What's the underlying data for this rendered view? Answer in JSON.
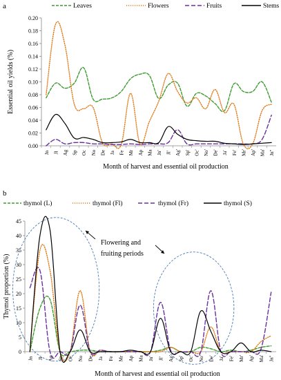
{
  "chart_data": [
    {
      "type": "line",
      "panel_label": "a",
      "ylabel": "Essential oil yields (%)",
      "xlabel": "Month of harvest and essential oil production",
      "ylim": [
        0,
        0.2
      ],
      "yticks": [
        "0.00",
        "0.02",
        "0.04",
        "0.06",
        "0.08",
        "0.10",
        "0.12",
        "0.14",
        "0.16",
        "0.18",
        "0.20"
      ],
      "ytick_values": [
        0,
        0.02,
        0.04,
        0.06,
        0.08,
        0.1,
        0.12,
        0.14,
        0.16,
        0.18,
        0.2
      ],
      "categories": [
        "Jn",
        "Jl",
        "Ag",
        "Sp",
        "Oc",
        "No",
        "De",
        "Ja",
        "Fe",
        "Mr",
        "Ap",
        "Ma",
        "Jn'",
        "Jl'",
        "Ag'",
        "Sp'",
        "Oc'",
        "No'",
        "De'",
        "Ja'",
        "Fe'",
        "Mr'",
        "Ap'",
        "Ma'",
        "Jn\""
      ],
      "legend_position": "top",
      "series": [
        {
          "name": "Leaves",
          "color": "#3b9b2f",
          "dash": "4,2",
          "values": [
            0.075,
            0.098,
            0.09,
            0.098,
            0.122,
            0.073,
            0.073,
            0.075,
            0.085,
            0.105,
            0.112,
            0.11,
            0.074,
            0.095,
            0.098,
            0.062,
            0.082,
            0.078,
            0.066,
            0.055,
            0.097,
            0.085,
            0.085,
            0.1,
            0.068
          ]
        },
        {
          "name": "Flowers",
          "color": "#e07b18",
          "dash": "1.2,1.8",
          "values": [
            0.08,
            0.19,
            0.158,
            0.065,
            0.058,
            0.06,
            0.005,
            0.003,
            0.002,
            0.082,
            0.003,
            0.038,
            0.07,
            0.113,
            0.085,
            0.067,
            0.075,
            0.058,
            0.088,
            0.052,
            0.065,
            0.003,
            0.003,
            0.055,
            0.065
          ]
        },
        {
          "name": "Fruits",
          "color": "#6a2f9e",
          "dash": "6,3",
          "values": [
            0,
            0.01,
            0.003,
            0.005,
            0.005,
            0.003,
            0.003,
            0.002,
            0.002,
            0.003,
            0.002,
            0.003,
            0.003,
            0.005,
            0.025,
            0.003,
            0.003,
            0.003,
            0.003,
            0.003,
            0.003,
            0.003,
            0.003,
            0.01,
            0.048
          ]
        },
        {
          "name": "Stems",
          "color": "#000000",
          "dash": "",
          "values": [
            0.025,
            0.049,
            0.035,
            0.012,
            0.013,
            0.01,
            0.005,
            0.005,
            0.006,
            0.01,
            0.005,
            0.005,
            0.005,
            0.03,
            0.018,
            0.01,
            0.008,
            0.007,
            0.007,
            0.004,
            0.003,
            0.002,
            0.003,
            0.004,
            0.005
          ]
        }
      ]
    },
    {
      "type": "line",
      "panel_label": "b",
      "ylabel": "Thymol proportion (%)",
      "xlabel": "Month of harvest and essential oil production",
      "ylim": [
        0,
        45
      ],
      "yticks": [
        "0",
        "5",
        "10",
        "15",
        "20",
        "25",
        "30",
        "35",
        "40",
        "45"
      ],
      "ytick_values": [
        0,
        5,
        10,
        15,
        20,
        25,
        30,
        35,
        40,
        45
      ],
      "categories": [
        "Jn",
        "Jl",
        "Ag",
        "Sp",
        "Oc",
        "No",
        "De",
        "Ja",
        "Fe",
        "Mr",
        "Ap",
        "Ma",
        "Jn'",
        "Jl'",
        "Ag'",
        "Sp'",
        "Oc'",
        "No'",
        "De'",
        "Ja'",
        "Fe'",
        "Mr'",
        "Ap'",
        "Ma'",
        "Jn\""
      ],
      "legend_position": "top",
      "annotations": [
        {
          "text": "Flowering and",
          "text2": "fruiting periods"
        }
      ],
      "series": [
        {
          "name": "thymol (L)",
          "color": "#3b9b2f",
          "dash": "4,2",
          "values": [
            0,
            15,
            18,
            0,
            0,
            0.5,
            0.5,
            0,
            0,
            0,
            0,
            0,
            0,
            0.5,
            1.5,
            0,
            0,
            1.5,
            1,
            0,
            0.5,
            0,
            0.5,
            1.5,
            2
          ]
        },
        {
          "name": "thymol (Fl)",
          "color": "#e07b18",
          "dash": "1.2,1.8",
          "values": [
            0,
            35,
            28,
            0,
            0,
            21,
            0,
            0.5,
            0,
            0,
            0,
            0,
            0,
            0,
            1.5,
            0,
            0,
            0,
            8.5,
            0,
            0,
            0,
            0,
            3.5,
            5.5
          ]
        },
        {
          "name": "thymol (Fr)",
          "color": "#6a2f9e",
          "dash": "6,3",
          "values": [
            22,
            28,
            0,
            0,
            0,
            16,
            0,
            0.5,
            0,
            0,
            0,
            0,
            0,
            17,
            0.5,
            0,
            0,
            0,
            21,
            0,
            0,
            0,
            0,
            1,
            20.5
          ]
        },
        {
          "name": "thymol (S)",
          "color": "#000000",
          "dash": "",
          "values": [
            0,
            40,
            42,
            0,
            0,
            7.5,
            0,
            0,
            0,
            0,
            0.5,
            0,
            0,
            11.5,
            0,
            0,
            0,
            14,
            7,
            0,
            0,
            3,
            0,
            0.5,
            0
          ]
        }
      ]
    }
  ]
}
